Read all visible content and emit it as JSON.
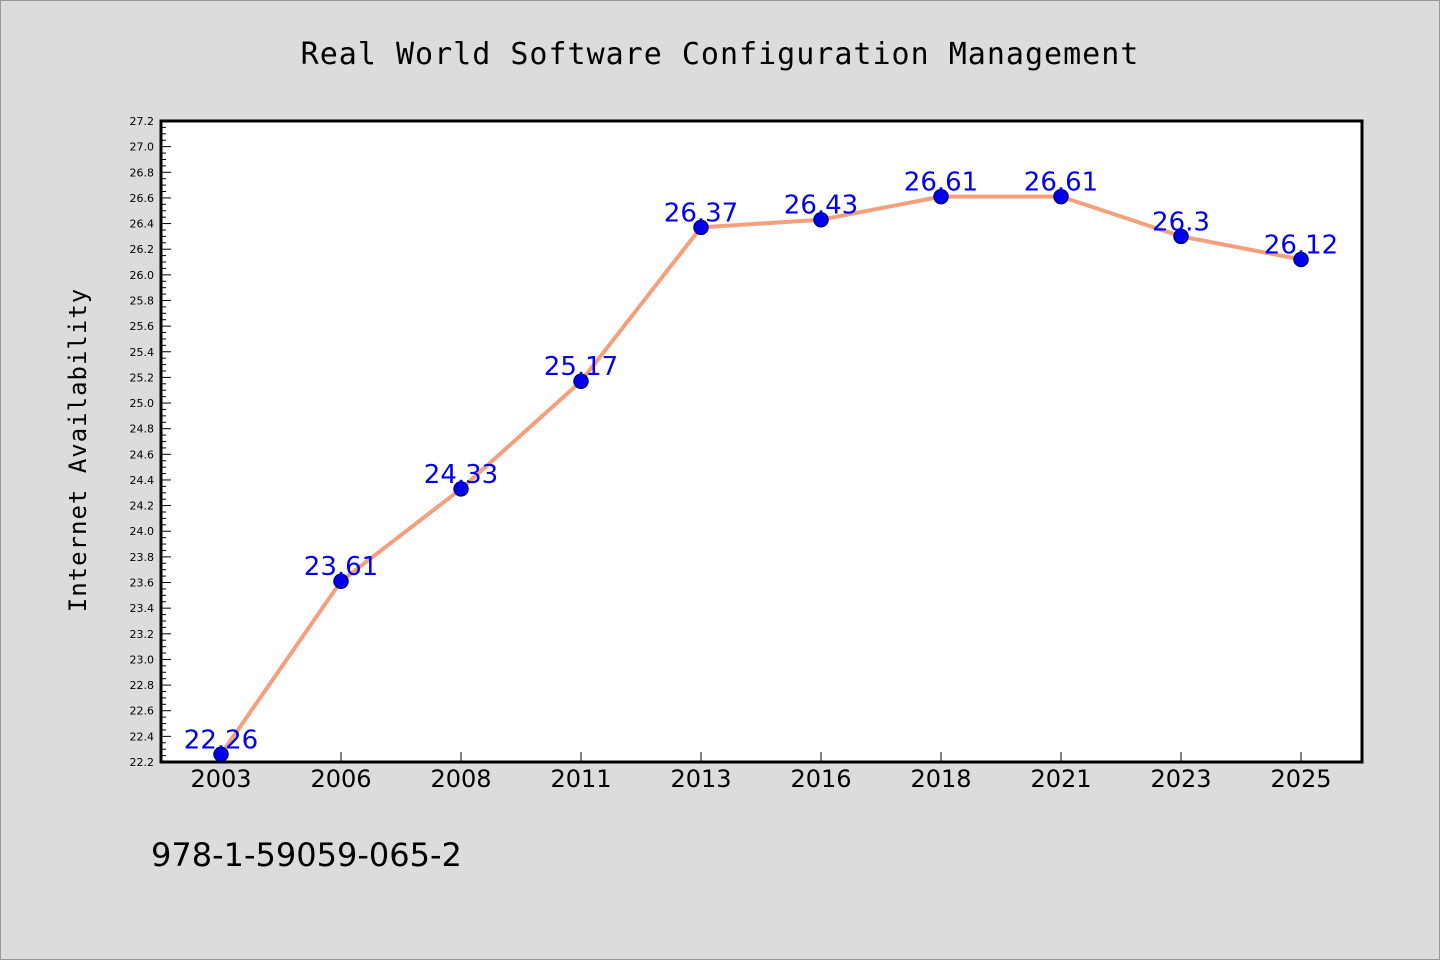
{
  "chart_data": {
    "type": "line",
    "title": "Real World Software Configuration Management",
    "xlabel": "",
    "ylabel": "Internet Availability",
    "categories": [
      "2003",
      "2006",
      "2008",
      "2011",
      "2013",
      "2016",
      "2018",
      "2021",
      "2023",
      "2025"
    ],
    "values": [
      22.26,
      23.61,
      24.33,
      25.17,
      26.37,
      26.43,
      26.61,
      26.61,
      26.3,
      26.12
    ],
    "data_labels": [
      "22.26",
      "23.61",
      "24.33",
      "25.17",
      "26.37",
      "26.43",
      "26.61",
      "26.61",
      "26.3",
      "26.12"
    ],
    "ylim": [
      22.2,
      27.2
    ],
    "yticks": [
      "22.2",
      "22.4",
      "22.6",
      "22.8",
      "23.0",
      "23.2",
      "23.4",
      "23.6",
      "23.8",
      "24.0",
      "24.2",
      "24.4",
      "24.6",
      "24.8",
      "25.0",
      "25.2",
      "25.4",
      "25.6",
      "25.8",
      "26.0",
      "26.2",
      "26.4",
      "26.6",
      "26.8",
      "27.0",
      "27.2"
    ],
    "grid": false,
    "legend": "none",
    "colors": {
      "line": "#f4a07c",
      "marker": "#0000ee",
      "marker_edge": "#000080",
      "data_label": "#0000ee",
      "plot_background": "#ffffff",
      "figure_background": "#dcdcdc"
    }
  },
  "footnote": "978-1-59059-065-2"
}
